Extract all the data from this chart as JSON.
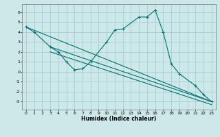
{
  "title": "",
  "xlabel": "Humidex (Indice chaleur)",
  "xlim": [
    -0.5,
    23.5
  ],
  "ylim": [
    -3.8,
    6.8
  ],
  "xticks": [
    0,
    1,
    2,
    3,
    4,
    5,
    6,
    7,
    8,
    9,
    10,
    11,
    12,
    13,
    14,
    15,
    16,
    17,
    18,
    19,
    20,
    21,
    22,
    23
  ],
  "yticks": [
    -3,
    -2,
    -1,
    0,
    1,
    2,
    3,
    4,
    5,
    6
  ],
  "bg_color": "#cce8e8",
  "line_color": "#007070",
  "grid_color": "#aacccc",
  "main_x": [
    0,
    1,
    3,
    4,
    5,
    6,
    7,
    8,
    10,
    11,
    12,
    14,
    15,
    16,
    17,
    18,
    19,
    21,
    22,
    23
  ],
  "main_y": [
    4.5,
    4.0,
    2.5,
    2.0,
    1.0,
    0.2,
    0.3,
    1.0,
    3.0,
    4.2,
    4.3,
    5.5,
    5.5,
    6.2,
    4.0,
    0.8,
    -0.2,
    -1.4,
    -2.3,
    -3.0
  ],
  "line1_x": [
    0,
    23
  ],
  "line1_y": [
    4.5,
    -3.0
  ],
  "line2_x": [
    3,
    23
  ],
  "line2_y": [
    2.5,
    -3.0
  ],
  "line3_x": [
    3,
    23
  ],
  "line3_y": [
    2.0,
    -3.3
  ]
}
